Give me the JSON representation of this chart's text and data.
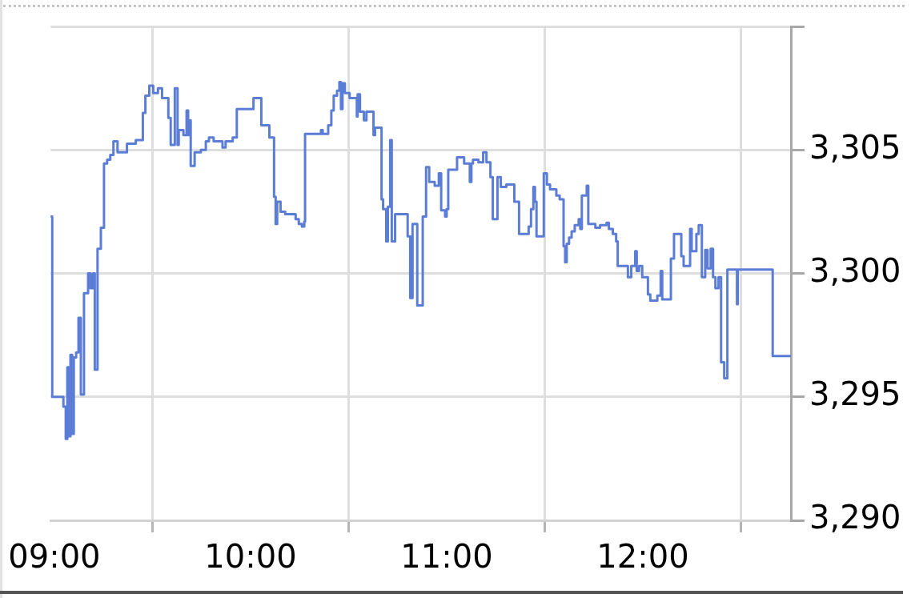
{
  "chart_data": {
    "type": "step",
    "color": "#5b7dd6",
    "x": [
      8.981,
      8.989,
      9.046,
      9.058,
      9.066,
      9.074,
      9.082,
      9.091,
      9.099,
      9.111,
      9.123,
      9.135,
      9.151,
      9.172,
      9.184,
      9.196,
      9.206,
      9.22,
      9.237,
      9.253,
      9.269,
      9.285,
      9.301,
      9.322,
      9.37,
      9.415,
      9.451,
      9.464,
      9.484,
      9.504,
      9.528,
      9.549,
      9.581,
      9.593,
      9.614,
      9.628,
      9.634,
      9.658,
      9.674,
      9.682,
      9.691,
      9.695,
      9.715,
      9.747,
      9.772,
      9.788,
      9.812,
      9.857,
      9.873,
      9.909,
      9.93,
      10.015,
      10.055,
      10.096,
      10.12,
      10.128,
      10.136,
      10.153,
      10.177,
      10.23,
      10.246,
      10.262,
      10.274,
      10.278,
      10.359,
      10.368,
      10.396,
      10.412,
      10.424,
      10.441,
      10.453,
      10.461,
      10.469,
      10.481,
      10.505,
      10.542,
      10.546,
      10.558,
      10.578,
      10.591,
      10.627,
      10.635,
      10.668,
      10.676,
      10.692,
      10.7,
      10.712,
      10.72,
      10.737,
      10.801,
      10.814,
      10.826,
      10.85,
      10.878,
      10.895,
      10.911,
      10.939,
      10.96,
      10.972,
      10.992,
      11.0,
      11.008,
      11.053,
      11.089,
      11.118,
      11.126,
      11.134,
      11.162,
      11.186,
      11.203,
      11.223,
      11.235,
      11.259,
      11.276,
      11.304,
      11.345,
      11.369,
      11.418,
      11.43,
      11.442,
      11.45,
      11.458,
      11.495,
      11.511,
      11.527,
      11.559,
      11.576,
      11.596,
      11.604,
      11.612,
      11.624,
      11.637,
      11.653,
      11.673,
      11.681,
      11.689,
      11.714,
      11.722,
      11.758,
      11.782,
      11.815,
      11.827,
      11.847,
      11.864,
      11.872,
      11.924,
      11.941,
      11.961,
      11.969,
      11.981,
      11.997,
      12.026,
      12.038,
      12.074,
      12.091,
      12.099,
      12.143,
      12.159,
      12.196,
      12.208,
      12.241,
      12.249,
      12.273,
      12.285,
      12.301,
      12.318,
      12.33,
      12.346,
      12.358,
      12.37,
      12.386,
      12.399,
      12.415,
      12.431,
      12.48,
      12.484,
      12.662,
      12.755
    ],
    "values": [
      3302.3,
      3295.0,
      3294.6,
      3293.3,
      3296.2,
      3293.4,
      3296.7,
      3293.5,
      3296.6,
      3296.8,
      3298.2,
      3295.1,
      3299.2,
      3300.0,
      3299.4,
      3300.0,
      3296.1,
      3301.0,
      3301.85,
      3304.45,
      3304.6,
      3304.8,
      3305.35,
      3304.9,
      3305.25,
      3305.4,
      3306.5,
      3307.2,
      3307.6,
      3307.3,
      3307.5,
      3307.1,
      3306.3,
      3305.2,
      3307.5,
      3305.2,
      3305.8,
      3305.6,
      3306.6,
      3305.6,
      3306.2,
      3304.35,
      3304.9,
      3305.0,
      3305.35,
      3305.5,
      3305.35,
      3305.1,
      3305.35,
      3305.5,
      3306.65,
      3307.1,
      3306.0,
      3305.5,
      3303.1,
      3302.0,
      3302.9,
      3302.5,
      3302.4,
      3302.2,
      3302.0,
      3301.9,
      3302.1,
      3305.65,
      3305.8,
      3305.65,
      3306.0,
      3306.6,
      3307.2,
      3307.4,
      3307.75,
      3306.65,
      3307.7,
      3307.3,
      3307.1,
      3306.35,
      3307.25,
      3306.55,
      3306.2,
      3306.55,
      3305.6,
      3305.9,
      3303.0,
      3302.6,
      3301.3,
      3302.7,
      3305.4,
      3301.3,
      3302.4,
      3301.5,
      3299.0,
      3302.0,
      3298.7,
      3302.3,
      3304.3,
      3303.7,
      3303.55,
      3304.05,
      3302.55,
      3302.3,
      3302.6,
      3304.2,
      3304.7,
      3304.45,
      3303.7,
      3304.45,
      3304.6,
      3304.5,
      3304.9,
      3304.5,
      3303.9,
      3302.2,
      3303.9,
      3303.5,
      3303.6,
      3302.9,
      3301.6,
      3301.9,
      3302.6,
      3303.5,
      3302.9,
      3301.5,
      3304.05,
      3303.6,
      3303.4,
      3303.15,
      3303.0,
      3301.1,
      3300.45,
      3301.2,
      3301.45,
      3301.7,
      3301.95,
      3302.2,
      3301.8,
      3303.15,
      3303.55,
      3302.0,
      3301.85,
      3301.95,
      3302.05,
      3301.8,
      3301.6,
      3301.3,
      3300.3,
      3299.85,
      3300.3,
      3300.9,
      3300.1,
      3300.3,
      3299.85,
      3299.15,
      3298.9,
      3299.1,
      3300.1,
      3298.95,
      3300.6,
      3301.6,
      3300.7,
      3300.3,
      3301.8,
      3300.9,
      3301.6,
      3301.95,
      3299.85,
      3300.95,
      3300.2,
      3301.0,
      3299.85,
      3299.4,
      3299.85,
      3296.4,
      3295.75,
      3300.15,
      3298.75,
      3300.15,
      3296.65,
      3296.65
    ],
    "xlim": [
      8.981,
      12.755
    ],
    "xticks": [
      {
        "value": 9,
        "label": "09:00"
      },
      {
        "value": 9.5,
        "label": null
      },
      {
        "value": 10,
        "label": "10:00"
      },
      {
        "value": 10.5,
        "label": null
      },
      {
        "value": 11,
        "label": "11:00"
      },
      {
        "value": 11.5,
        "label": null
      },
      {
        "value": 12,
        "label": "12:00"
      },
      {
        "value": 12.5,
        "label": null
      }
    ],
    "ylim": [
      3290,
      3310
    ],
    "yticks": [
      {
        "value": 3290,
        "label": "3,290"
      },
      {
        "value": 3295,
        "label": "3,295"
      },
      {
        "value": 3300,
        "label": "3,300"
      },
      {
        "value": 3305,
        "label": "3,305"
      },
      {
        "value": 3310,
        "label": null
      }
    ],
    "grid": true
  }
}
